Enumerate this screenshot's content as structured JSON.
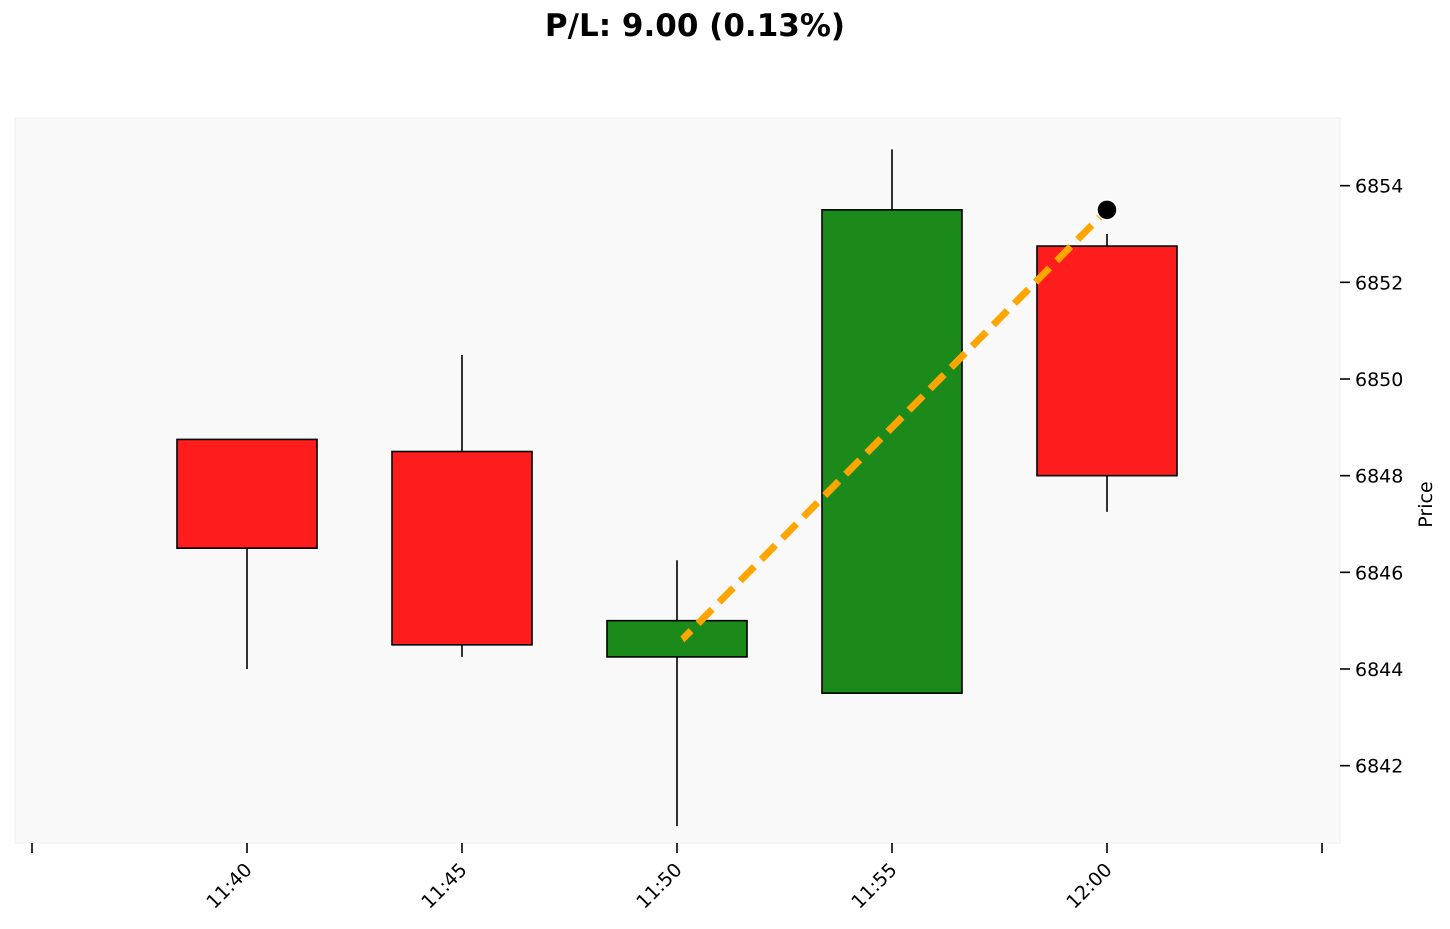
{
  "chart_data": {
    "type": "candlestick",
    "title": "P/L: 9.00 (0.13%)",
    "ylabel": "Price",
    "ylim": [
      6840.4,
      6855.4
    ],
    "y_ticks": [
      6842,
      6844,
      6846,
      6848,
      6850,
      6852,
      6854
    ],
    "categories": [
      "11:40",
      "11:45",
      "11:50",
      "11:55",
      "12:00"
    ],
    "candles": [
      {
        "time": "11:40",
        "open": 6848.75,
        "high": 6848.75,
        "low": 6844.0,
        "close": 6846.5
      },
      {
        "time": "11:45",
        "open": 6848.5,
        "high": 6850.5,
        "low": 6844.25,
        "close": 6844.5
      },
      {
        "time": "11:50",
        "open": 6844.25,
        "high": 6846.25,
        "low": 6840.75,
        "close": 6845.0
      },
      {
        "time": "11:55",
        "open": 6843.5,
        "high": 6854.75,
        "low": 6843.5,
        "close": 6853.5
      },
      {
        "time": "12:00",
        "open": 6852.75,
        "high": 6853.0,
        "low": 6847.25,
        "close": 6848.0
      }
    ],
    "trade": {
      "entry": {
        "time": "11:50",
        "price": 6844.5,
        "marker": "triangle-up"
      },
      "exit": {
        "time": "12:00",
        "price": 6853.5,
        "marker": "circle"
      }
    },
    "colors": {
      "up": "#1b8a1b",
      "down": "#ff1c1c",
      "trade_line": "#ffa500",
      "entry_marker": "#1b8a1b",
      "exit_marker": "#000000",
      "plot_background": "#f9f9f9"
    },
    "grid": false,
    "legend": "none"
  }
}
